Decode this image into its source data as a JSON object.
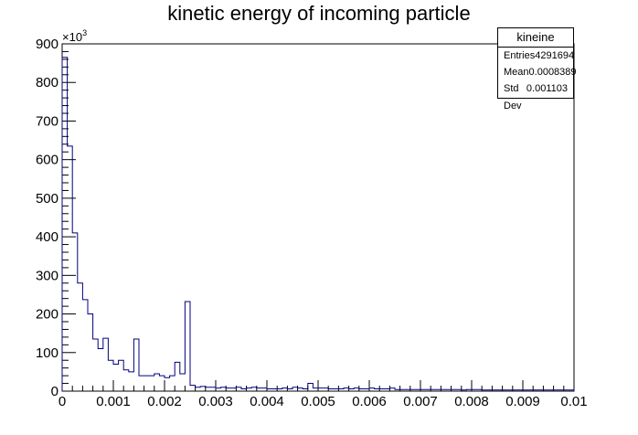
{
  "chart_data": {
    "type": "histogram",
    "title": "kinetic energy of incoming particle",
    "xlabel": "",
    "ylabel": "",
    "y_multiplier_label": "×10",
    "y_multiplier_exp": "3",
    "xlim": [
      0,
      0.01
    ],
    "ylim": [
      0,
      900
    ],
    "x_ticks": [
      "0",
      "0.001",
      "0.002",
      "0.003",
      "0.004",
      "0.005",
      "0.006",
      "0.007",
      "0.008",
      "0.009",
      "0.01"
    ],
    "y_ticks": [
      "0",
      "100",
      "200",
      "300",
      "400",
      "500",
      "600",
      "700",
      "800",
      "900"
    ],
    "bin_width": 0.0001,
    "line_color": "#00007f",
    "values": [
      865,
      635,
      410,
      280,
      237,
      200,
      135,
      110,
      137,
      80,
      70,
      80,
      55,
      50,
      135,
      40,
      40,
      40,
      45,
      40,
      35,
      40,
      75,
      45,
      232,
      15,
      10,
      12,
      10,
      10,
      8,
      10,
      8,
      8,
      10,
      6,
      8,
      10,
      8,
      8,
      6,
      6,
      6,
      8,
      6,
      10,
      8,
      6,
      20,
      8,
      8,
      8,
      6,
      6,
      6,
      8,
      6,
      8,
      6,
      6,
      8,
      6,
      6,
      6,
      8,
      4,
      4,
      4,
      4,
      4,
      4,
      4,
      4,
      4,
      4,
      4,
      4,
      4,
      3,
      4,
      4,
      4,
      3,
      3,
      3,
      3,
      3,
      3,
      3,
      3,
      3,
      3,
      3,
      3,
      3,
      3,
      3,
      3,
      3,
      3
    ]
  },
  "stats": {
    "name": "kineine",
    "rows": [
      {
        "label": "Entries",
        "value": "4291694"
      },
      {
        "label": "Mean",
        "value": "0.0008389"
      },
      {
        "label": "Std Dev",
        "value": "0.001103"
      }
    ]
  }
}
